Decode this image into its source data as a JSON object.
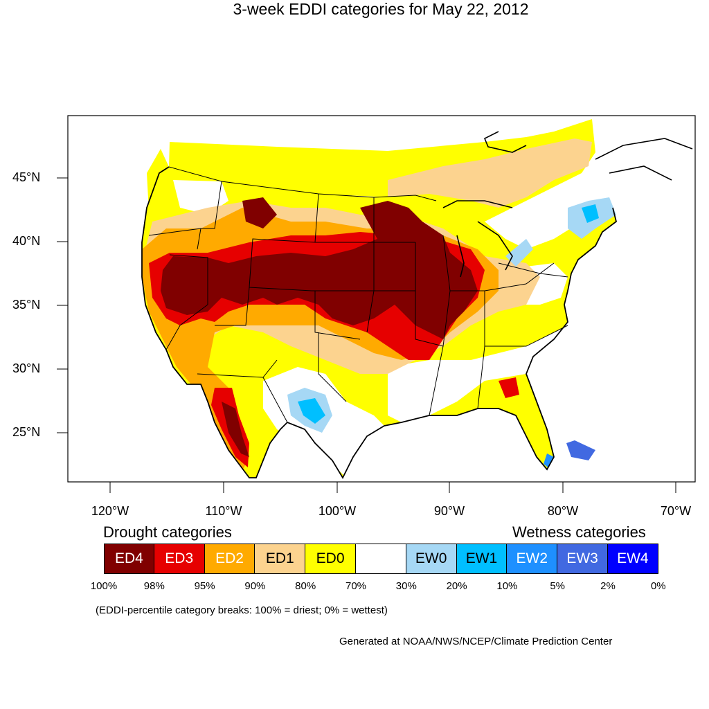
{
  "title": "3-week EDDI categories for May 22, 2012",
  "lat_labels": [
    "45°N",
    "40°N",
    "35°N",
    "30°N",
    "25°N"
  ],
  "lon_labels": [
    "120°W",
    "110°W",
    "100°W",
    "90°W",
    "80°W",
    "70°W"
  ],
  "legend": {
    "drought_heading": "Drought categories",
    "wetness_heading": "Wetness categories",
    "categories": [
      {
        "label": "ED4",
        "color": "#800000",
        "text_color": "#ffffff"
      },
      {
        "label": "ED3",
        "color": "#e60000",
        "text_color": "#ffffff"
      },
      {
        "label": "ED2",
        "color": "#ffaa00",
        "text_color": "#ffffff"
      },
      {
        "label": "ED1",
        "color": "#fcd38f",
        "text_color": "#000000"
      },
      {
        "label": "ED0",
        "color": "#ffff00",
        "text_color": "#000000"
      },
      {
        "label": "",
        "color": "#ffffff",
        "text_color": "#000000"
      },
      {
        "label": "EW0",
        "color": "#a6d8f5",
        "text_color": "#000000"
      },
      {
        "label": "EW1",
        "color": "#00bfff",
        "text_color": "#000000"
      },
      {
        "label": "EW2",
        "color": "#1e90ff",
        "text_color": "#ffffff"
      },
      {
        "label": "EW3",
        "color": "#4169e1",
        "text_color": "#ffffff"
      },
      {
        "label": "EW4",
        "color": "#0000ff",
        "text_color": "#ffffff"
      }
    ],
    "breaks": [
      "100%",
      "98%",
      "95%",
      "90%",
      "80%",
      "70%",
      "30%",
      "20%",
      "10%",
      "5%",
      "2%",
      "0%"
    ]
  },
  "note": "(EDDI-percentile category breaks: 100% = driest; 0% = wettest)",
  "credit": "Generated at NOAA/NWS/NCEP/Climate Prediction Center"
}
